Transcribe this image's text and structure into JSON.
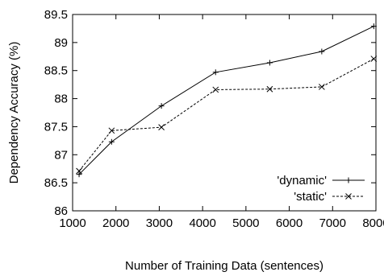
{
  "chart_data": {
    "type": "line",
    "xlabel": "Number of Training Data (sentences)",
    "ylabel": "Dependency Accuracy (%)",
    "xlim": [
      1000,
      8000
    ],
    "ylim": [
      86,
      89.5
    ],
    "xticks": [
      "1000",
      "2000",
      "3000",
      "4000",
      "5000",
      "6000",
      "7000",
      "8000"
    ],
    "yticks": [
      "86",
      "86.5",
      "87",
      "87.5",
      "88",
      "88.5",
      "89",
      "89.5"
    ],
    "grid": false,
    "legend_position": "bottom-right",
    "series": [
      {
        "name": "'dynamic'",
        "line_style": "solid",
        "marker": "plus",
        "x": [
          1150,
          1900,
          3050,
          4300,
          5550,
          6750,
          7950
        ],
        "y": [
          86.65,
          87.23,
          87.87,
          88.47,
          88.64,
          88.84,
          89.29
        ]
      },
      {
        "name": "'static'",
        "line_style": "dashed",
        "marker": "cross",
        "x": [
          1150,
          1900,
          3050,
          4300,
          5550,
          6750,
          7950
        ],
        "y": [
          86.71,
          87.43,
          87.49,
          88.16,
          88.17,
          88.21,
          88.71
        ]
      }
    ]
  }
}
